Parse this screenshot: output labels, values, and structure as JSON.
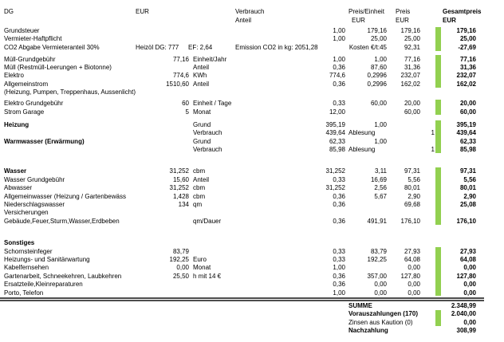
{
  "colors": {
    "bar_green": "#92d050",
    "rule_gray": "#4d4d4d"
  },
  "header": {
    "dg": "DG",
    "eur": "EUR",
    "verbrauch": "Verbrauch",
    "anteil": "Anteil",
    "preis_einheit": "Preis/Einheit",
    "preis_einheit_eur": "EUR",
    "preis": "Preis",
    "preis_eur": "EUR",
    "gesamtpreis": "Gesamtpreis",
    "gesamtpreis_eur": "EUR"
  },
  "sections": [
    {
      "id": "steuern-versicherung",
      "bar_rows": [
        0,
        2
      ],
      "rows": [
        {
          "label": "Grundsteuer",
          "verb": "1,00",
          "pe": "179,16",
          "preis": "179,16",
          "gesamt": "179,16"
        },
        {
          "label": "Vermieter-Haftpflicht",
          "verb": "1,00",
          "pe": "25,00",
          "preis": "25,00",
          "gesamt": "25,00"
        },
        {
          "label": "CO2 Abgabe Vermieteranteil 30%",
          "eur_text": "Heizöl DG: 777",
          "ef": "EF: 2,64",
          "verb_left": "Emission CO2 in kg: 2051,28",
          "pe": "Kosten €/t:45",
          "preis": "92,31",
          "gesamt": "-27,69"
        }
      ]
    },
    {
      "id": "muell-strom",
      "bar_rows": [
        0,
        3
      ],
      "rows": [
        {
          "label": "Müll-Grundgebühr",
          "eur": "77,16",
          "unit": "Einheit/Jahr",
          "verb": "1,00",
          "pe": "1,00",
          "preis": "77,16",
          "gesamt": "77,16"
        },
        {
          "label": "Müll (Restmüll-Leerungen + Biotonne)",
          "unit": "Anteil",
          "verb": "0,36",
          "pe": "87,60",
          "preis": "31,36",
          "gesamt": "31,36"
        },
        {
          "label": "Elektro",
          "eur": "774,6",
          "unit": "KWh",
          "verb": "774,6",
          "pe": "0,2996",
          "preis": "232,07",
          "gesamt": "232,07"
        },
        {
          "label": "Allgemeinstrom",
          "eur": "1510,60",
          "unit": "Anteil",
          "verb": "0,36",
          "pe": "0,2996",
          "preis": "162,02",
          "gesamt": "162,02"
        },
        {
          "label": "(Heizung, Pumpen, Treppenhaus, Aussenlicht)"
        }
      ]
    },
    {
      "id": "strom-grundgebuehr",
      "bar_rows": [
        0,
        1
      ],
      "rows": [
        {
          "label": "Elektro Grundgebühr",
          "eur": "60",
          "unit": "Einheit / Tage",
          "verb": "0,33",
          "pe": "60,00",
          "preis": "20,00",
          "gesamt": "20,00"
        },
        {
          "label": "Strom Garage",
          "eur": "5",
          "unit": "Monat",
          "verb": "12,00",
          "preis": "60,00",
          "gesamt": "60,00"
        }
      ]
    },
    {
      "id": "heizung-warmwasser",
      "bar_rows": [
        0,
        3
      ],
      "rows": [
        {
          "label": "Heizung",
          "label_bold": true,
          "unit": "Grund",
          "verb": "395,19",
          "pe": "1,00",
          "gesamt": "395,19"
        },
        {
          "unit": "Verbrauch",
          "verb": "439,64",
          "pe_left": "Ablesung",
          "count": "1",
          "gesamt": "439,64"
        },
        {
          "label": "Warmwasser (Erwärmung)",
          "label_bold": true,
          "unit": "Grund",
          "verb": "62,33",
          "pe": "1,00",
          "gesamt": "62,33"
        },
        {
          "unit": "Verbrauch",
          "verb": "85,98",
          "pe_left": "Ablesung",
          "count": "1",
          "gesamt": "85,98"
        }
      ]
    },
    {
      "id": "wasser-versicherungen",
      "bar_rows": [
        0,
        6
      ],
      "rows": [
        {
          "label": "Wasser",
          "label_bold": true,
          "eur": "31,252",
          "unit": "cbm",
          "verb": "31,252",
          "pe": "3,11",
          "preis": "97,31",
          "gesamt": "97,31"
        },
        {
          "label": "Wasser Grundgebühr",
          "eur": "15,60",
          "unit": "Anteil",
          "verb": "0,33",
          "pe": "16,69",
          "preis": "5,56",
          "gesamt": "5,56"
        },
        {
          "label": "Abwasser",
          "eur": "31,252",
          "unit": "cbm",
          "verb": "31,252",
          "pe": "2,56",
          "preis": "80,01",
          "gesamt": "80,01"
        },
        {
          "label": "Allgemeinwasser (Heizung / Gartenbewäss",
          "eur": "1,428",
          "unit": "cbm",
          "verb": "0,36",
          "pe": "5,67",
          "preis": "2,90",
          "gesamt": "2,90"
        },
        {
          "label": "Niederschlagswasser",
          "eur": "134",
          "unit": "qm",
          "verb": "0,36",
          "preis": "69,68",
          "gesamt": "25,08"
        },
        {
          "label": "Versicherungen"
        },
        {
          "label": "Gebäude,Feuer,Sturm,Wasser,Erdbeben",
          "unit": "qm/Dauer",
          "verb": "0,36",
          "pe": "491,91",
          "preis": "176,10",
          "gesamt": "176,10"
        }
      ]
    },
    {
      "id": "sonstiges",
      "bar_rows": [
        1,
        6
      ],
      "rows": [
        {
          "label": "Sonstiges",
          "label_bold": true
        },
        {
          "label": "Schornsteinfeger",
          "eur": "83,79",
          "verb": "0,33",
          "pe": "83,79",
          "preis": "27,93",
          "gesamt": "27,93"
        },
        {
          "label": "Heizungs- und Sanitärwartung",
          "eur": "192,25",
          "unit": "Euro",
          "verb": "0,33",
          "pe": "192,25",
          "preis": "64,08",
          "gesamt": "64,08"
        },
        {
          "label": "Kabelfernsehen",
          "eur": "0,00",
          "unit": "Monat",
          "verb": "1,00",
          "preis": "0,00",
          "gesamt": "0,00"
        },
        {
          "label": "Gartenarbeit, Schneekehren, Laubkehren",
          "eur": "25,50",
          "unit": "h mit 14 €",
          "verb": "0,36",
          "pe": "357,00",
          "preis": "127,80",
          "gesamt": "127,80"
        },
        {
          "label": "Ersatzteile,Kleinreparaturen",
          "verb": "0,36",
          "pe": "0,00",
          "preis": "0,00",
          "gesamt": "0,00"
        },
        {
          "label": "Porto, Telefon",
          "verb": "1,00",
          "pe": "0,00",
          "preis": "0,00",
          "gesamt": "0,00"
        }
      ]
    }
  ],
  "summary": {
    "bar_rows": [
      1,
      2
    ],
    "rows": [
      {
        "label": "SUMME",
        "label_bold": true,
        "value": "2.348,99"
      },
      {
        "label": "Vorauszahlungen (170)",
        "label_bold": true,
        "value": "2.040,00"
      },
      {
        "label": "Zinsen aus Kaution (0)",
        "label_bold": false,
        "value": "0,00"
      },
      {
        "label": "Nachzahlung",
        "label_bold": true,
        "value": "308,99"
      }
    ]
  }
}
